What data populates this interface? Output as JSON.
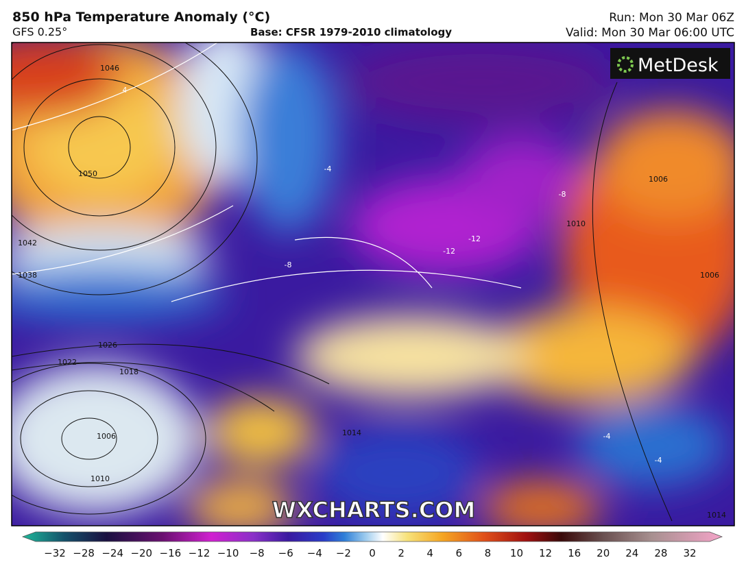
{
  "header": {
    "title": "850 hPa Temperature Anomaly (°C)",
    "subtitle": "GFS 0.25°",
    "base": "Base: CFSR 1979-2010 climatology",
    "run": "Run: Mon 30 Mar 06Z",
    "valid": "Valid: Mon 30 Mar 06:00 UTC"
  },
  "logo": "MetDesk",
  "watermark": "WXCHARTS.COM",
  "map": {
    "labels": [
      "1046",
      "1050",
      "4",
      "1042",
      "1038",
      "1026",
      "1022",
      "1018",
      "1006",
      "1010",
      "1014",
      "-4",
      "-8",
      "-12",
      "-12",
      "-8",
      "1010",
      "1006",
      "1006",
      "-4",
      "-4",
      "1014"
    ]
  },
  "colorbar": {
    "labels": [
      "−32",
      "−28",
      "−24",
      "−20",
      "−16",
      "−12",
      "−10",
      "−8",
      "−6",
      "−4",
      "−2",
      "0",
      "2",
      "4",
      "6",
      "8",
      "10",
      "12",
      "16",
      "20",
      "24",
      "28",
      "32"
    ]
  }
}
